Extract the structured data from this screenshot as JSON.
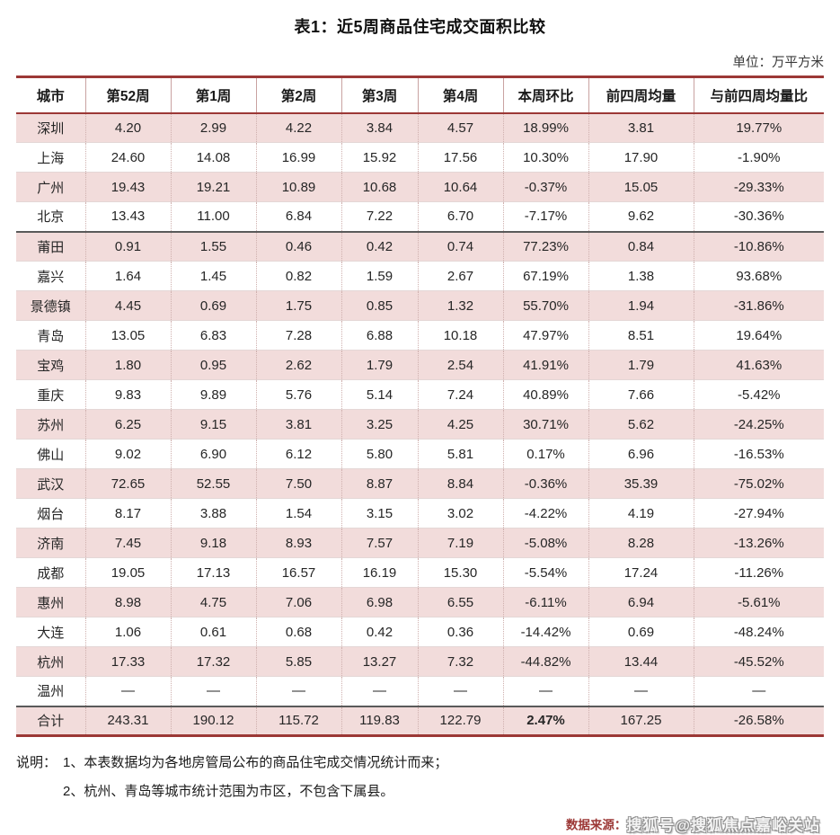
{
  "title": "表1：近5周商品住宅成交面积比较",
  "unit_label": "单位：万平方米",
  "table": {
    "headers": [
      "城市",
      "第52周",
      "第1周",
      "第2周",
      "第3周",
      "第4周",
      "本周环比",
      "前四周均量",
      "与前四周均量比"
    ],
    "rows": [
      [
        "深圳",
        "4.20",
        "2.99",
        "4.22",
        "3.84",
        "4.57",
        "18.99%",
        "3.81",
        "19.77%"
      ],
      [
        "上海",
        "24.60",
        "14.08",
        "16.99",
        "15.92",
        "17.56",
        "10.30%",
        "17.90",
        "-1.90%"
      ],
      [
        "广州",
        "19.43",
        "19.21",
        "10.89",
        "10.68",
        "10.64",
        "-0.37%",
        "15.05",
        "-29.33%"
      ],
      [
        "北京",
        "13.43",
        "11.00",
        "6.84",
        "7.22",
        "6.70",
        "-7.17%",
        "9.62",
        "-30.36%"
      ],
      [
        "莆田",
        "0.91",
        "1.55",
        "0.46",
        "0.42",
        "0.74",
        "77.23%",
        "0.84",
        "-10.86%"
      ],
      [
        "嘉兴",
        "1.64",
        "1.45",
        "0.82",
        "1.59",
        "2.67",
        "67.19%",
        "1.38",
        "93.68%"
      ],
      [
        "景德镇",
        "4.45",
        "0.69",
        "1.75",
        "0.85",
        "1.32",
        "55.70%",
        "1.94",
        "-31.86%"
      ],
      [
        "青岛",
        "13.05",
        "6.83",
        "7.28",
        "6.88",
        "10.18",
        "47.97%",
        "8.51",
        "19.64%"
      ],
      [
        "宝鸡",
        "1.80",
        "0.95",
        "2.62",
        "1.79",
        "2.54",
        "41.91%",
        "1.79",
        "41.63%"
      ],
      [
        "重庆",
        "9.83",
        "9.89",
        "5.76",
        "5.14",
        "7.24",
        "40.89%",
        "7.66",
        "-5.42%"
      ],
      [
        "苏州",
        "6.25",
        "9.15",
        "3.81",
        "3.25",
        "4.25",
        "30.71%",
        "5.62",
        "-24.25%"
      ],
      [
        "佛山",
        "9.02",
        "6.90",
        "6.12",
        "5.80",
        "5.81",
        "0.17%",
        "6.96",
        "-16.53%"
      ],
      [
        "武汉",
        "72.65",
        "52.55",
        "7.50",
        "8.87",
        "8.84",
        "-0.36%",
        "35.39",
        "-75.02%"
      ],
      [
        "烟台",
        "8.17",
        "3.88",
        "1.54",
        "3.15",
        "3.02",
        "-4.22%",
        "4.19",
        "-27.94%"
      ],
      [
        "济南",
        "7.45",
        "9.18",
        "8.93",
        "7.57",
        "7.19",
        "-5.08%",
        "8.28",
        "-13.26%"
      ],
      [
        "成都",
        "19.05",
        "17.13",
        "16.57",
        "16.19",
        "15.30",
        "-5.54%",
        "17.24",
        "-11.26%"
      ],
      [
        "惠州",
        "8.98",
        "4.75",
        "7.06",
        "6.98",
        "6.55",
        "-6.11%",
        "6.94",
        "-5.61%"
      ],
      [
        "大连",
        "1.06",
        "0.61",
        "0.68",
        "0.42",
        "0.36",
        "-14.42%",
        "0.69",
        "-48.24%"
      ],
      [
        "杭州",
        "17.33",
        "17.32",
        "5.85",
        "13.27",
        "7.32",
        "-44.82%",
        "13.44",
        "-45.52%"
      ],
      [
        "温州",
        "—",
        "—",
        "—",
        "—",
        "—",
        "—",
        "—",
        "—"
      ]
    ],
    "total_row": [
      "合计",
      "243.31",
      "190.12",
      "115.72",
      "119.83",
      "122.79",
      "2.47%",
      "167.25",
      "-26.58%"
    ],
    "group_break_after_row": 3
  },
  "notes": {
    "label": "说明：",
    "items": [
      "1、本表数据均为各地房管局公布的商品住宅成交情况统计而来；",
      "2、杭州、青岛等城市统计范围为市区，不包含下属县。"
    ]
  },
  "source": {
    "label": "数据来源：",
    "watermark": "搜狐号@搜狐焦点嘉峪关站"
  },
  "colors": {
    "accent_dark_red": "#9c3836",
    "row_pink": "#f2dcdb",
    "increase_red": "#cc4440",
    "decrease_green": "#4fb584"
  },
  "chart_data": {
    "type": "table",
    "title": "表1：近5周商品住宅成交面积比较",
    "unit": "万平方米",
    "columns": [
      "城市",
      "第52周",
      "第1周",
      "第2周",
      "第3周",
      "第4周",
      "本周环比",
      "前四周均量",
      "与前四周均量比"
    ],
    "rows": [
      [
        "深圳",
        4.2,
        2.99,
        4.22,
        3.84,
        4.57,
        "18.99%",
        3.81,
        "19.77%"
      ],
      [
        "上海",
        24.6,
        14.08,
        16.99,
        15.92,
        17.56,
        "10.30%",
        17.9,
        "-1.90%"
      ],
      [
        "广州",
        19.43,
        19.21,
        10.89,
        10.68,
        10.64,
        "-0.37%",
        15.05,
        "-29.33%"
      ],
      [
        "北京",
        13.43,
        11.0,
        6.84,
        7.22,
        6.7,
        "-7.17%",
        9.62,
        "-30.36%"
      ],
      [
        "莆田",
        0.91,
        1.55,
        0.46,
        0.42,
        0.74,
        "77.23%",
        0.84,
        "-10.86%"
      ],
      [
        "嘉兴",
        1.64,
        1.45,
        0.82,
        1.59,
        2.67,
        "67.19%",
        1.38,
        "93.68%"
      ],
      [
        "景德镇",
        4.45,
        0.69,
        1.75,
        0.85,
        1.32,
        "55.70%",
        1.94,
        "-31.86%"
      ],
      [
        "青岛",
        13.05,
        6.83,
        7.28,
        6.88,
        10.18,
        "47.97%",
        8.51,
        "19.64%"
      ],
      [
        "宝鸡",
        1.8,
        0.95,
        2.62,
        1.79,
        2.54,
        "41.91%",
        1.79,
        "41.63%"
      ],
      [
        "重庆",
        9.83,
        9.89,
        5.76,
        5.14,
        7.24,
        "40.89%",
        7.66,
        "-5.42%"
      ],
      [
        "苏州",
        6.25,
        9.15,
        3.81,
        3.25,
        4.25,
        "30.71%",
        5.62,
        "-24.25%"
      ],
      [
        "佛山",
        9.02,
        6.9,
        6.12,
        5.8,
        5.81,
        "0.17%",
        6.96,
        "-16.53%"
      ],
      [
        "武汉",
        72.65,
        52.55,
        7.5,
        8.87,
        8.84,
        "-0.36%",
        35.39,
        "-75.02%"
      ],
      [
        "烟台",
        8.17,
        3.88,
        1.54,
        3.15,
        3.02,
        "-4.22%",
        4.19,
        "-27.94%"
      ],
      [
        "济南",
        7.45,
        9.18,
        8.93,
        7.57,
        7.19,
        "-5.08%",
        8.28,
        "-13.26%"
      ],
      [
        "成都",
        19.05,
        17.13,
        16.57,
        16.19,
        15.3,
        "-5.54%",
        17.24,
        "-11.26%"
      ],
      [
        "惠州",
        8.98,
        4.75,
        7.06,
        6.98,
        6.55,
        "-6.11%",
        6.94,
        "-5.61%"
      ],
      [
        "大连",
        1.06,
        0.61,
        0.68,
        0.42,
        0.36,
        "-14.42%",
        0.69,
        "-48.24%"
      ],
      [
        "杭州",
        17.33,
        17.32,
        5.85,
        13.27,
        7.32,
        "-44.82%",
        13.44,
        "-45.52%"
      ],
      [
        "温州",
        null,
        null,
        null,
        null,
        null,
        null,
        null,
        null
      ],
      [
        "合计",
        243.31,
        190.12,
        115.72,
        119.83,
        122.79,
        "2.47%",
        167.25,
        "-26.58%"
      ]
    ]
  }
}
